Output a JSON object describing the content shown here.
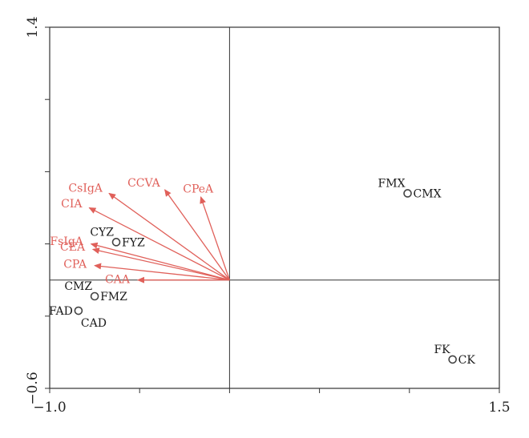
{
  "chart_data": {
    "type": "scatter",
    "title": "",
    "xlabel": "",
    "ylabel": "",
    "xlim": [
      -1.0,
      1.5
    ],
    "ylim": [
      -0.6,
      1.4
    ],
    "x_tick_labels": [
      {
        "value": -1.0,
        "label": "−1.0"
      },
      {
        "value": 1.5,
        "label": "1.5"
      }
    ],
    "y_tick_labels": [
      {
        "value": -0.6,
        "label": "−0.6"
      },
      {
        "value": 1.4,
        "label": "1.4"
      }
    ],
    "x_ticks": [
      -1.0,
      -0.5,
      0.0,
      0.5,
      1.0,
      1.5
    ],
    "y_ticks": [
      -0.6,
      -0.2,
      0.2,
      0.6,
      1.0,
      1.4
    ],
    "reference_lines": {
      "x": 0.0,
      "y": 0.0
    },
    "vectors": [
      {
        "label": "CsIgA",
        "x": -0.67,
        "y": 0.48
      },
      {
        "label": "CIA",
        "x": -0.78,
        "y": 0.4
      },
      {
        "label": "CCVA",
        "x": -0.36,
        "y": 0.5
      },
      {
        "label": "CPeA",
        "x": -0.16,
        "y": 0.46
      },
      {
        "label": "FsIgA",
        "x": -0.77,
        "y": 0.2
      },
      {
        "label": "CEA",
        "x": -0.76,
        "y": 0.17
      },
      {
        "label": "CPA",
        "x": -0.75,
        "y": 0.08
      },
      {
        "label": "CAA",
        "x": -0.51,
        "y": 0.0
      }
    ],
    "points": [
      {
        "x": -0.63,
        "y": 0.21,
        "labels": [
          {
            "text": "CYZ",
            "pos": "tl"
          },
          {
            "text": "FYZ",
            "pos": "r"
          }
        ]
      },
      {
        "x": -0.75,
        "y": -0.09,
        "labels": [
          {
            "text": "CMZ",
            "pos": "tl"
          },
          {
            "text": "FMZ",
            "pos": "r"
          }
        ]
      },
      {
        "x": -0.84,
        "y": -0.17,
        "labels": [
          {
            "text": "FAD",
            "pos": "l"
          },
          {
            "text": "CAD",
            "pos": "br"
          }
        ]
      },
      {
        "x": 0.99,
        "y": 0.48,
        "labels": [
          {
            "text": "FMX",
            "pos": "tl"
          },
          {
            "text": "CMX",
            "pos": "r"
          }
        ]
      },
      {
        "x": 1.24,
        "y": -0.44,
        "labels": [
          {
            "text": "FK",
            "pos": "tl"
          },
          {
            "text": "CK",
            "pos": "r"
          }
        ]
      }
    ],
    "colors": {
      "vector": "#e0605a",
      "axis": "#333333",
      "point": "#444444",
      "point_label": "#1a1a1a"
    }
  }
}
